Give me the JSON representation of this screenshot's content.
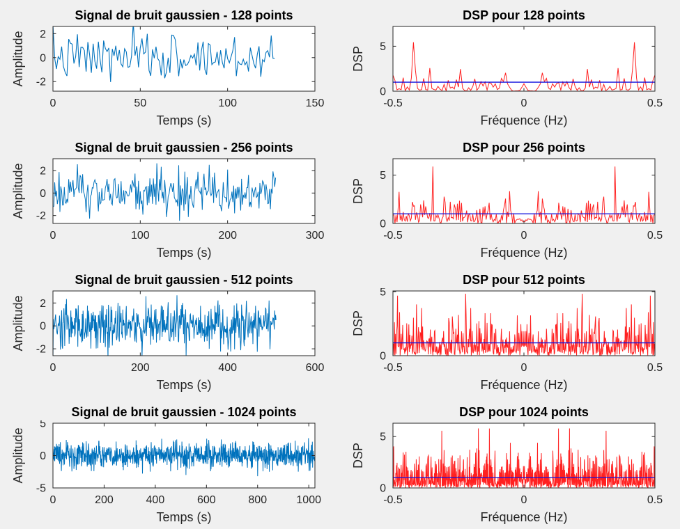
{
  "figure": {
    "background_color": "#f0f0f0",
    "axes_background_color": "#ffffff",
    "axis_color": "#262626",
    "signal_color": "#0072bd",
    "dsp_color": "#ff2020",
    "theoretical_color": "#1111dd",
    "grid": "off",
    "legend": "none"
  },
  "chart_data": [
    {
      "type": "line",
      "title": "Signal de bruit gaussien - 128 points",
      "xlabel": "Temps (s)",
      "ylabel": "Amplitude",
      "xlim": [
        0,
        150
      ],
      "ylim": [
        -2.8,
        2.6
      ],
      "xticks": [
        0,
        50,
        100,
        150
      ],
      "yticks": [
        -2,
        0,
        2
      ],
      "series": [
        {
          "name": "signal-trace",
          "color": "#0072bd",
          "width": 1.1,
          "generator": {
            "kind": "gaussian",
            "n": 128,
            "mean": 0,
            "std": 1,
            "seed": 7,
            "x_start": 0,
            "x_step": 1
          }
        }
      ]
    },
    {
      "type": "line",
      "title": "DSP pour 128 points",
      "xlabel": "Fréquence (Hz)",
      "ylabel": "DSP",
      "xlim": [
        -0.5,
        0.5
      ],
      "ylim": [
        0,
        7.2
      ],
      "xticks": [
        -0.5,
        0,
        0.5
      ],
      "yticks": [
        0,
        5
      ],
      "series": [
        {
          "name": "dsp-trace",
          "color": "#ff2020",
          "width": 1,
          "generator": {
            "kind": "periodogram",
            "n": 128,
            "mean": 1,
            "seed": 13
          }
        },
        {
          "name": "theoretical-dsp-line",
          "color": "#1111dd",
          "width": 1.3,
          "generator": {
            "kind": "constant",
            "value": 1,
            "x": [
              -0.5,
              0.5
            ]
          }
        }
      ]
    },
    {
      "type": "line",
      "title": "Signal de bruit gaussien - 256 points",
      "xlabel": "Temps (s)",
      "ylabel": "Amplitude",
      "xlim": [
        0,
        300
      ],
      "ylim": [
        -2.7,
        3.05
      ],
      "xticks": [
        0,
        100,
        200,
        300
      ],
      "yticks": [
        -2,
        0,
        2
      ],
      "series": [
        {
          "name": "signal-trace",
          "color": "#0072bd",
          "width": 1,
          "generator": {
            "kind": "gaussian",
            "n": 256,
            "mean": 0,
            "std": 1,
            "seed": 21,
            "x_start": 0,
            "x_step": 1
          }
        }
      ]
    },
    {
      "type": "line",
      "title": "DSP pour 256 points",
      "xlabel": "Fréquence (Hz)",
      "ylabel": "DSP",
      "xlim": [
        -0.5,
        0.5
      ],
      "ylim": [
        0,
        6.7
      ],
      "xticks": [
        -0.5,
        0,
        0.5
      ],
      "yticks": [
        0,
        5
      ],
      "series": [
        {
          "name": "dsp-trace",
          "color": "#ff2020",
          "width": 1,
          "generator": {
            "kind": "periodogram",
            "n": 256,
            "mean": 1,
            "seed": 29
          }
        },
        {
          "name": "theoretical-dsp-line",
          "color": "#1111dd",
          "width": 1.3,
          "generator": {
            "kind": "constant",
            "value": 1,
            "x": [
              -0.5,
              0.5
            ]
          }
        }
      ]
    },
    {
      "type": "line",
      "title": "Signal de bruit gaussien - 512 points",
      "xlabel": "Temps (s)",
      "ylabel": "Amplitude",
      "xlim": [
        0,
        600
      ],
      "ylim": [
        -2.6,
        3.05
      ],
      "xticks": [
        0,
        200,
        400,
        600
      ],
      "yticks": [
        -2,
        0,
        2
      ],
      "series": [
        {
          "name": "signal-trace",
          "color": "#0072bd",
          "width": 1,
          "generator": {
            "kind": "gaussian",
            "n": 512,
            "mean": 0,
            "std": 1,
            "seed": 35,
            "x_start": 0,
            "x_step": 1
          }
        }
      ]
    },
    {
      "type": "line",
      "title": "DSP pour 512 points",
      "xlabel": "Fréquence (Hz)",
      "ylabel": "DSP",
      "xlim": [
        -0.5,
        0.5
      ],
      "ylim": [
        0,
        5.05
      ],
      "xticks": [
        -0.5,
        0,
        0.5
      ],
      "yticks": [
        0,
        5
      ],
      "series": [
        {
          "name": "dsp-trace",
          "color": "#ff2020",
          "width": 1,
          "generator": {
            "kind": "periodogram",
            "n": 512,
            "mean": 1,
            "seed": 41
          }
        },
        {
          "name": "theoretical-dsp-line",
          "color": "#1111dd",
          "width": 1.3,
          "generator": {
            "kind": "constant",
            "value": 1,
            "x": [
              -0.5,
              0.5
            ]
          }
        }
      ]
    },
    {
      "type": "line",
      "title": "Signal de bruit gaussien - 1024 points",
      "xlabel": "Temps (s)",
      "ylabel": "Amplitude",
      "xlim": [
        0,
        1024
      ],
      "ylim": [
        -5,
        5
      ],
      "xticks": [
        0,
        200,
        400,
        600,
        800,
        1000
      ],
      "yticks": [
        -5,
        0,
        5
      ],
      "series": [
        {
          "name": "signal-trace",
          "color": "#0072bd",
          "width": 1,
          "generator": {
            "kind": "gaussian",
            "n": 1024,
            "mean": 0,
            "std": 1,
            "seed": 55,
            "x_start": 0,
            "x_step": 1
          }
        }
      ]
    },
    {
      "type": "line",
      "title": "DSP pour 1024 points",
      "xlabel": "Fréquence (Hz)",
      "ylabel": "DSP",
      "xlim": [
        -0.5,
        0.5
      ],
      "ylim": [
        0,
        6.3
      ],
      "xticks": [
        -0.5,
        0,
        0.5
      ],
      "yticks": [
        0,
        5
      ],
      "series": [
        {
          "name": "dsp-trace",
          "color": "#ff2020",
          "width": 1,
          "generator": {
            "kind": "periodogram",
            "n": 1024,
            "mean": 1,
            "seed": 61
          }
        },
        {
          "name": "theoretical-dsp-line",
          "color": "#1111dd",
          "width": 1.3,
          "generator": {
            "kind": "constant",
            "value": 1,
            "x": [
              -0.5,
              0.5
            ]
          }
        }
      ]
    }
  ]
}
